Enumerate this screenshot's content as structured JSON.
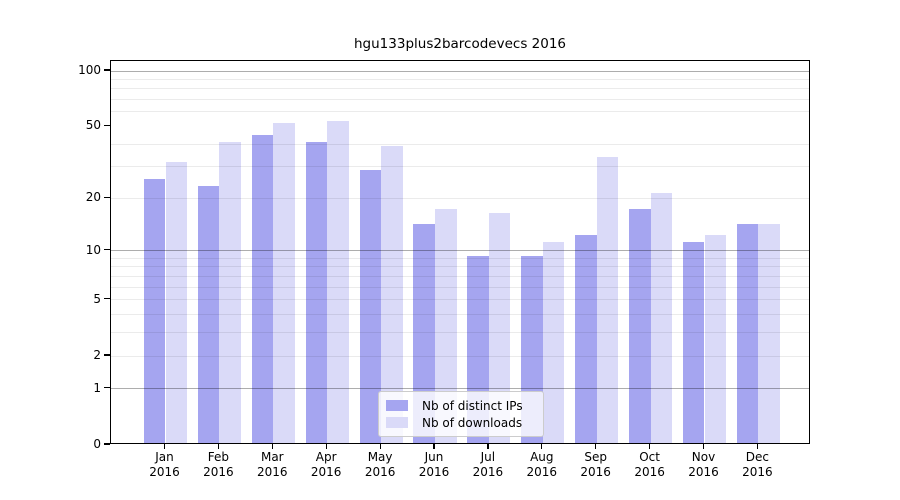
{
  "chart_data": {
    "type": "bar",
    "title": "hgu133plus2barcodevecs 2016",
    "categories": [
      "Jan",
      "Feb",
      "Mar",
      "Apr",
      "May",
      "Jun",
      "Jul",
      "Aug",
      "Sep",
      "Oct",
      "Nov",
      "Dec"
    ],
    "year_label": "2016",
    "series": [
      {
        "name": "Nb of distinct IPs",
        "key": "distinct-ips",
        "color": "#a5a5f0",
        "values": [
          25,
          23,
          44,
          40,
          28,
          14,
          9,
          9,
          12,
          17,
          11,
          14
        ]
      },
      {
        "name": "Nb of downloads",
        "key": "downloads",
        "color": "#dadaf8",
        "values": [
          31,
          40,
          51,
          52,
          38,
          17,
          16,
          11,
          33,
          21,
          12,
          14
        ]
      }
    ],
    "y_axis": {
      "scale": "log1p",
      "tick_values": [
        100,
        50,
        20,
        10,
        5,
        2,
        1,
        0
      ],
      "major_gridlines": [
        1,
        10,
        100
      ],
      "minor_gridlines": [
        2,
        3,
        4,
        5,
        6,
        7,
        8,
        9,
        20,
        30,
        40,
        60,
        70,
        80,
        90
      ],
      "top_value": 113,
      "bottom_value": 0
    },
    "grid": true,
    "legend": {
      "position": "bottom-center",
      "entries": [
        "Nb of distinct IPs",
        "Nb of downloads"
      ]
    }
  },
  "colors": {
    "background": "#ffffff",
    "bar_distinct_ips": "#a5a5f0",
    "bar_downloads": "#dadaf8",
    "grid_major": "rgba(0,0,0,0.32)",
    "grid_minor": "rgba(0,0,0,0.08)",
    "spine": "#000000",
    "text": "#000000",
    "legend_background": "rgba(255,255,255,0.8)",
    "legend_border": "#cccccc"
  }
}
